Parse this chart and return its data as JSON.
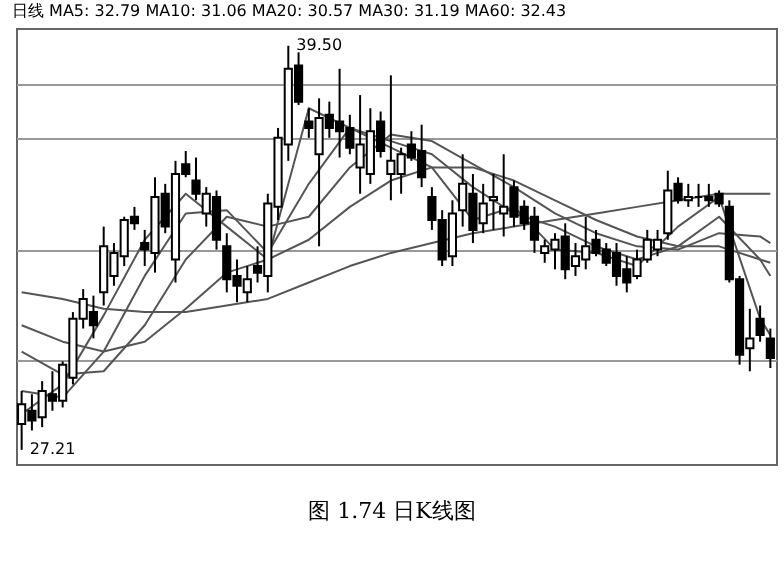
{
  "chart_data": {
    "type": "candlestick",
    "title": "日线 MA5: 32.79 MA10: 31.06 MA20: 30.57 MA30: 31.19 MA60: 32.43",
    "annotations": [
      "图 1.74 日K线图",
      "39.50",
      "27.21"
    ],
    "categories": [
      null,
      null,
      null,
      null,
      null,
      null,
      null,
      null,
      null,
      null,
      null,
      null,
      null,
      null,
      null,
      null,
      null,
      null,
      null,
      null,
      null,
      null,
      null,
      null,
      null,
      null,
      null,
      null,
      null,
      null,
      null,
      null,
      null,
      null,
      null,
      null,
      null,
      null,
      null,
      null,
      null,
      null,
      null,
      null,
      null,
      null,
      null,
      null,
      null,
      null,
      null,
      null,
      null,
      null,
      null,
      null,
      null,
      null,
      null,
      null,
      null,
      null,
      null,
      null,
      null,
      null,
      null,
      null,
      null,
      null,
      null,
      null,
      null,
      null
    ],
    "ohlc": [
      [
        28.0,
        29.0,
        27.21,
        28.6
      ],
      [
        28.4,
        28.9,
        27.8,
        28.1
      ],
      [
        28.2,
        29.3,
        27.9,
        29.0
      ],
      [
        28.9,
        29.6,
        28.4,
        28.7
      ],
      [
        28.7,
        29.9,
        28.5,
        29.8
      ],
      [
        29.4,
        31.4,
        29.2,
        31.2
      ],
      [
        31.2,
        32.1,
        30.9,
        31.8
      ],
      [
        31.4,
        31.9,
        30.6,
        31.0
      ],
      [
        32.0,
        34.0,
        31.6,
        33.4
      ],
      [
        32.5,
        33.5,
        32.2,
        33.2
      ],
      [
        33.1,
        34.3,
        32.8,
        34.2
      ],
      [
        34.3,
        34.6,
        33.9,
        34.1
      ],
      [
        33.5,
        33.9,
        32.8,
        33.3
      ],
      [
        33.2,
        35.5,
        32.6,
        34.9
      ],
      [
        35.0,
        35.3,
        33.8,
        34.0
      ],
      [
        33.0,
        36.0,
        32.3,
        35.6
      ],
      [
        35.9,
        36.3,
        35.5,
        35.6
      ],
      [
        35.4,
        36.1,
        34.8,
        35.0
      ],
      [
        34.4,
        35.2,
        34.0,
        35.0
      ],
      [
        34.9,
        35.1,
        33.3,
        33.6
      ],
      [
        33.4,
        33.8,
        32.0,
        32.4
      ],
      [
        32.5,
        33.0,
        31.7,
        32.2
      ],
      [
        32.0,
        32.8,
        31.7,
        32.4
      ],
      [
        32.8,
        33.4,
        32.3,
        32.6
      ],
      [
        32.5,
        35.0,
        32.0,
        34.7
      ],
      [
        34.6,
        37.0,
        34.2,
        36.7
      ],
      [
        36.5,
        39.5,
        36.0,
        38.8
      ],
      [
        38.9,
        39.3,
        37.7,
        37.8
      ],
      [
        37.2,
        37.6,
        36.7,
        37.0
      ],
      [
        36.2,
        37.9,
        33.4,
        37.3
      ],
      [
        37.4,
        37.8,
        36.7,
        37.0
      ],
      [
        37.2,
        38.8,
        36.1,
        36.9
      ],
      [
        37.0,
        37.4,
        36.2,
        36.4
      ],
      [
        35.8,
        38.0,
        35.0,
        36.5
      ],
      [
        35.6,
        37.6,
        35.3,
        36.9
      ],
      [
        37.2,
        37.5,
        36.1,
        36.3
      ],
      [
        35.6,
        38.6,
        34.8,
        36.0
      ],
      [
        35.6,
        36.4,
        35.0,
        36.2
      ],
      [
        36.5,
        36.9,
        36.0,
        36.1
      ],
      [
        36.3,
        37.1,
        35.2,
        35.5
      ],
      [
        34.9,
        35.2,
        33.9,
        34.2
      ],
      [
        34.2,
        34.5,
        32.8,
        33.0
      ],
      [
        33.1,
        34.8,
        32.8,
        34.4
      ],
      [
        34.5,
        36.2,
        34.0,
        35.3
      ],
      [
        35.0,
        35.6,
        33.5,
        33.9
      ],
      [
        34.1,
        35.3,
        33.8,
        34.7
      ],
      [
        34.8,
        35.6,
        33.9,
        34.9
      ],
      [
        34.4,
        36.2,
        33.7,
        34.6
      ],
      [
        35.2,
        35.4,
        34.0,
        34.3
      ],
      [
        34.6,
        34.8,
        33.9,
        34.1
      ],
      [
        34.3,
        34.6,
        33.2,
        33.6
      ],
      [
        33.2,
        33.6,
        32.9,
        33.4
      ],
      [
        33.3,
        33.8,
        32.7,
        33.6
      ],
      [
        33.7,
        34.1,
        32.4,
        32.7
      ],
      [
        32.8,
        33.5,
        32.5,
        33.1
      ],
      [
        33.0,
        34.3,
        32.7,
        33.4
      ],
      [
        33.6,
        33.9,
        33.1,
        33.2
      ],
      [
        33.3,
        33.5,
        32.8,
        32.9
      ],
      [
        33.2,
        33.5,
        32.2,
        32.5
      ],
      [
        32.7,
        33.1,
        32.0,
        32.3
      ],
      [
        32.5,
        33.3,
        32.4,
        33.0
      ],
      [
        33.0,
        33.9,
        32.9,
        33.6
      ],
      [
        33.3,
        33.9,
        33.1,
        33.6
      ],
      [
        33.8,
        35.7,
        33.6,
        35.1
      ],
      [
        35.3,
        35.5,
        34.7,
        34.8
      ],
      [
        34.8,
        35.3,
        34.6,
        34.9
      ],
      [
        34.9,
        35.3,
        34.6,
        34.9
      ],
      [
        34.9,
        35.3,
        34.6,
        34.8
      ],
      [
        35.0,
        35.1,
        34.6,
        34.7
      ],
      [
        34.6,
        34.8,
        32.3,
        32.4
      ],
      [
        32.4,
        32.5,
        29.8,
        30.1
      ],
      [
        30.3,
        31.5,
        29.6,
        30.6
      ],
      [
        31.2,
        31.6,
        30.5,
        30.7
      ],
      [
        30.6,
        30.9,
        29.7,
        30.0
      ]
    ],
    "series": [
      {
        "type": "line",
        "color": "#555555",
        "values": [
          28.3,
          null,
          null,
          null,
          29.2,
          null,
          null,
          null,
          31.3,
          null,
          null,
          null,
          33.6,
          null,
          null,
          null,
          35.0,
          null,
          null,
          null,
          34.0,
          null,
          null,
          null,
          33.0,
          null,
          null,
          null,
          37.6,
          null,
          null,
          null,
          37.0,
          null,
          null,
          null,
          36.4,
          null,
          null,
          null,
          35.8,
          null,
          null,
          null,
          34.2,
          null,
          null,
          null,
          34.6,
          null,
          null,
          null,
          33.3,
          null,
          null,
          null,
          33.2,
          null,
          null,
          null,
          32.8,
          null,
          null,
          null,
          34.0,
          null,
          null,
          null,
          34.9,
          null,
          null,
          null,
          31.2,
          30.7
        ]
      },
      {
        "type": "line",
        "color": "#555555",
        "values": [
          29.0,
          null,
          null,
          null,
          28.8,
          null,
          null,
          null,
          30.2,
          null,
          null,
          null,
          32.5,
          null,
          null,
          null,
          34.4,
          null,
          null,
          null,
          34.5,
          null,
          null,
          null,
          33.2,
          null,
          null,
          null,
          35.3,
          null,
          null,
          null,
          37.0,
          null,
          null,
          null,
          36.6,
          null,
          null,
          null,
          36.2,
          null,
          null,
          null,
          35.2,
          null,
          null,
          null,
          34.4,
          null,
          null,
          null,
          34.0,
          null,
          null,
          null,
          33.4,
          null,
          null,
          null,
          33.0,
          null,
          null,
          null,
          33.4,
          null,
          null,
          null,
          34.3,
          null,
          null,
          null,
          33.0,
          32.5
        ]
      },
      {
        "type": "line",
        "color": "#555555",
        "values": [
          30.2,
          null,
          null,
          null,
          29.5,
          null,
          null,
          null,
          29.6,
          null,
          null,
          null,
          31.0,
          null,
          null,
          null,
          33.0,
          null,
          null,
          null,
          34.3,
          null,
          null,
          null,
          34.0,
          null,
          null,
          null,
          34.3,
          null,
          null,
          null,
          35.8,
          null,
          null,
          null,
          36.8,
          null,
          null,
          null,
          36.6,
          null,
          null,
          null,
          35.9,
          null,
          null,
          null,
          35.2,
          null,
          null,
          null,
          34.4,
          null,
          null,
          null,
          33.8,
          null,
          null,
          null,
          33.4,
          null,
          null,
          null,
          33.3,
          null,
          null,
          null,
          33.8,
          null,
          null,
          null,
          33.7,
          33.5
        ]
      },
      {
        "type": "line",
        "color": "#555555",
        "values": [
          31.0,
          null,
          null,
          null,
          30.5,
          null,
          null,
          null,
          30.2,
          null,
          null,
          null,
          30.5,
          null,
          null,
          null,
          31.5,
          null,
          null,
          null,
          32.6,
          null,
          null,
          null,
          33.0,
          null,
          null,
          null,
          33.6,
          null,
          null,
          null,
          34.6,
          null,
          null,
          null,
          35.4,
          null,
          null,
          null,
          35.8,
          null,
          null,
          null,
          35.8,
          null,
          null,
          null,
          35.4,
          null,
          null,
          null,
          34.8,
          null,
          null,
          null,
          34.2,
          null,
          null,
          null,
          33.7,
          null,
          null,
          null,
          33.4,
          null,
          null,
          null,
          33.4,
          null,
          null,
          null,
          33.0,
          32.9
        ]
      },
      {
        "type": "line",
        "color": "#555555",
        "values": [
          32.0,
          null,
          null,
          null,
          31.8,
          null,
          null,
          null,
          31.5,
          null,
          null,
          null,
          31.4,
          null,
          null,
          null,
          31.4,
          null,
          null,
          null,
          31.6,
          null,
          null,
          null,
          31.8,
          null,
          null,
          null,
          32.3,
          null,
          null,
          null,
          32.8,
          null,
          null,
          null,
          33.2,
          null,
          null,
          null,
          33.5,
          null,
          null,
          null,
          33.8,
          null,
          null,
          null,
          34.0,
          null,
          null,
          null,
          34.2,
          null,
          null,
          null,
          34.4,
          null,
          null,
          null,
          34.6,
          null,
          null,
          null,
          34.8,
          null,
          null,
          null,
          35.0,
          null,
          null,
          null,
          35.0,
          35.0
        ]
      }
    ],
    "ylim": [
      26.78,
      40.04
    ],
    "yticks": [
      {
        "value": 29.95,
        "label": null
      },
      {
        "value": 33.29,
        "label": null
      },
      {
        "value": 36.7,
        "label": null
      },
      {
        "value": 38.34,
        "label": null
      }
    ],
    "grid": "y"
  }
}
